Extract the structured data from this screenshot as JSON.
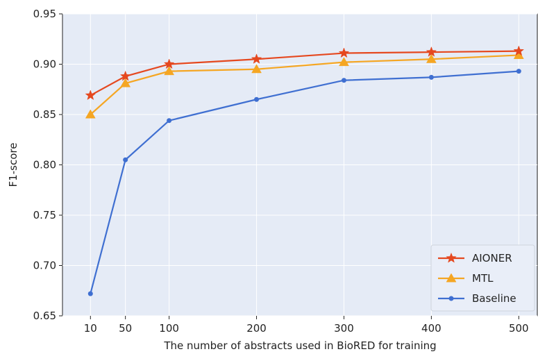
{
  "chart_data": {
    "type": "line",
    "title": "",
    "xlabel": "The number of abstracts used in BioRED for training",
    "ylabel": "F1-score",
    "x": [
      10,
      50,
      100,
      200,
      300,
      400,
      500
    ],
    "x_ticks": [
      "10",
      "50",
      "100",
      "200",
      "300",
      "400",
      "500"
    ],
    "xlim": [
      -22,
      522
    ],
    "ylim": [
      0.65,
      0.95
    ],
    "y_ticks": [
      "0.65",
      "0.70",
      "0.75",
      "0.80",
      "0.85",
      "0.90",
      "0.95"
    ],
    "grid": true,
    "legend_position": "bottom-right",
    "series": [
      {
        "name": "AIONER",
        "color": "#e5481f",
        "marker": "star",
        "values": [
          0.869,
          0.888,
          0.9,
          0.905,
          0.911,
          0.912,
          0.913
        ]
      },
      {
        "name": "MTL",
        "color": "#f5a623",
        "marker": "triangle",
        "values": [
          0.85,
          0.881,
          0.893,
          0.895,
          0.902,
          0.905,
          0.909
        ]
      },
      {
        "name": "Baseline",
        "color": "#3f6fd1",
        "marker": "circle",
        "values": [
          0.672,
          0.805,
          0.844,
          0.865,
          0.884,
          0.887,
          0.893
        ]
      }
    ]
  }
}
